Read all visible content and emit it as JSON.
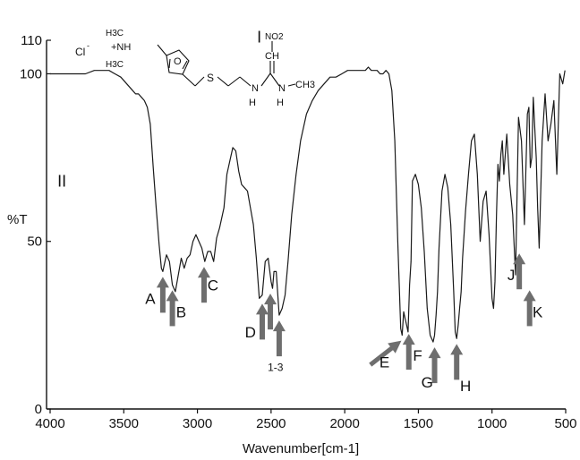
{
  "chart_data": {
    "type": "line",
    "title": "",
    "xlabel": "Wavenumber[cm-1]",
    "ylabel": "%T",
    "xlim": [
      4000,
      500
    ],
    "ylim": [
      0,
      110
    ],
    "x_ticks": [
      {
        "value": 4000,
        "label": "4000"
      },
      {
        "value": 3500,
        "label": "3500"
      },
      {
        "value": 3000,
        "label": "3000"
      },
      {
        "value": 2500,
        "label": "2500"
      },
      {
        "value": 2000,
        "label": "2000"
      },
      {
        "value": 1500,
        "label": "1500"
      },
      {
        "value": 1000,
        "label": "1000"
      },
      {
        "value": 500,
        "label": "500"
      }
    ],
    "y_ticks": [
      {
        "value": 0,
        "label": "0"
      },
      {
        "value": 50,
        "label": "50"
      },
      {
        "value": 100,
        "label": "100"
      },
      {
        "value": 110,
        "label": "110"
      }
    ],
    "grid": false,
    "legend": "none",
    "line_color": "#1a1a1a",
    "arrow_color": "#6e6e6e",
    "panel_labels": [
      {
        "text": "I",
        "x": 2580,
        "y": 111
      },
      {
        "text": "II",
        "x": 3920,
        "y": 68
      }
    ],
    "series": [
      {
        "x": [
          4000,
          3940,
          3880,
          3820,
          3760,
          3700,
          3650,
          3600,
          3560,
          3520,
          3480,
          3440,
          3420,
          3400,
          3380,
          3360,
          3340,
          3320,
          3300,
          3280,
          3260,
          3245,
          3235,
          3225,
          3210,
          3190,
          3170,
          3150,
          3130,
          3110,
          3090,
          3070,
          3050,
          3030,
          3010,
          2990,
          2970,
          2950,
          2930,
          2910,
          2890,
          2870,
          2850,
          2820,
          2800,
          2780,
          2760,
          2740,
          2720,
          2700,
          2680,
          2660,
          2640,
          2620,
          2600,
          2580,
          2560,
          2540,
          2520,
          2500,
          2490,
          2480,
          2465,
          2445,
          2425,
          2405,
          2385,
          2360,
          2330,
          2300,
          2260,
          2220,
          2180,
          2140,
          2100,
          2060,
          2020,
          1980,
          1940,
          1900,
          1860,
          1840,
          1820,
          1800,
          1780,
          1760,
          1740,
          1720,
          1700,
          1680,
          1660,
          1640,
          1620,
          1610,
          1600,
          1590,
          1580,
          1570,
          1560,
          1550,
          1540,
          1520,
          1500,
          1480,
          1460,
          1440,
          1420,
          1400,
          1390,
          1380,
          1370,
          1360,
          1340,
          1320,
          1300,
          1280,
          1260,
          1250,
          1240,
          1230,
          1220,
          1210,
          1200,
          1180,
          1160,
          1140,
          1120,
          1100,
          1080,
          1060,
          1040,
          1020,
          1000,
          990,
          980,
          970,
          960,
          950,
          940,
          930,
          920,
          900,
          880,
          860,
          840,
          820,
          800,
          780,
          760,
          750,
          740,
          730,
          720,
          700,
          690,
          680,
          660,
          640,
          620,
          600,
          580,
          560,
          540,
          520,
          505
        ],
        "y": [
          100,
          100,
          100,
          100,
          100,
          101,
          101,
          101,
          100,
          99,
          97,
          95,
          94,
          94,
          93,
          92,
          90,
          85,
          72,
          60,
          49,
          42,
          41,
          43,
          46,
          44,
          37,
          35,
          40,
          45,
          42,
          45,
          46,
          50,
          52,
          50,
          48,
          44,
          47,
          47,
          44,
          51,
          54,
          60,
          70,
          74,
          78,
          77,
          71,
          67,
          66,
          65,
          60,
          55,
          45,
          33,
          34,
          44,
          45,
          38,
          36,
          41,
          41,
          28,
          30,
          34,
          44,
          58,
          70,
          80,
          88,
          92,
          95,
          97,
          99,
          99,
          100,
          101,
          101,
          101,
          101,
          102,
          101,
          101,
          101,
          100,
          100,
          101,
          100,
          95,
          80,
          50,
          24,
          22,
          29,
          27,
          25,
          23,
          37,
          44,
          68,
          70,
          67,
          60,
          47,
          30,
          22,
          20,
          22,
          28,
          35,
          48,
          65,
          70,
          66,
          55,
          35,
          23,
          21,
          25,
          30,
          35,
          45,
          59,
          70,
          80,
          82,
          70,
          50,
          62,
          65,
          52,
          33,
          30,
          38,
          58,
          73,
          68,
          76,
          80,
          70,
          82,
          67,
          58,
          40,
          87,
          80,
          55,
          88,
          90,
          72,
          75,
          93,
          75,
          60,
          48,
          80,
          94,
          80,
          85,
          92,
          70,
          100,
          97,
          101
        ]
      }
    ],
    "arrows": [
      {
        "label": "A",
        "x": 3235,
        "y_tip": 41,
        "label_x": 3320,
        "label_y": 33
      },
      {
        "label": "B",
        "x": 3170,
        "y_tip": 37,
        "label_x": 3110,
        "label_y": 29
      },
      {
        "label": "C",
        "x": 2955,
        "y_tip": 44,
        "label_x": 2895,
        "label_y": 37
      },
      {
        "label": "D",
        "x": 2560,
        "y_tip": 33,
        "label_x": 2640,
        "label_y": 23
      },
      {
        "label": "",
        "x": 2505,
        "y_tip": 36
      },
      {
        "label": "1-3",
        "x": 2445,
        "y_tip": 28,
        "label_x": 2470,
        "label_y": 13
      },
      {
        "label": "E",
        "x": 1615,
        "y_tip": 22,
        "label_x": 1730,
        "label_y": 14,
        "diagonal": true
      },
      {
        "label": "F",
        "x": 1565,
        "y_tip": 24,
        "label_x": 1505,
        "label_y": 16
      },
      {
        "label": "G",
        "x": 1390,
        "y_tip": 20,
        "label_x": 1440,
        "label_y": 8
      },
      {
        "label": "H",
        "x": 1240,
        "y_tip": 21,
        "label_x": 1180,
        "label_y": 7
      },
      {
        "label": "J",
        "x": 815,
        "y_tip": 48,
        "label_x": 870,
        "label_y": 40
      },
      {
        "label": "K",
        "x": 745,
        "y_tip": 37,
        "label_x": 690,
        "label_y": 29
      }
    ]
  },
  "molecule": {
    "counter_ion": "Cl",
    "counter_ion_charge": "-",
    "amine_group": [
      "H3C",
      "+NH",
      "H3C"
    ],
    "nitro_group": "NO2",
    "ch_label": "CH",
    "n_label": "N",
    "h_label": "H",
    "methyl_label": "CH3",
    "s_label": "S",
    "o_label": "O"
  }
}
